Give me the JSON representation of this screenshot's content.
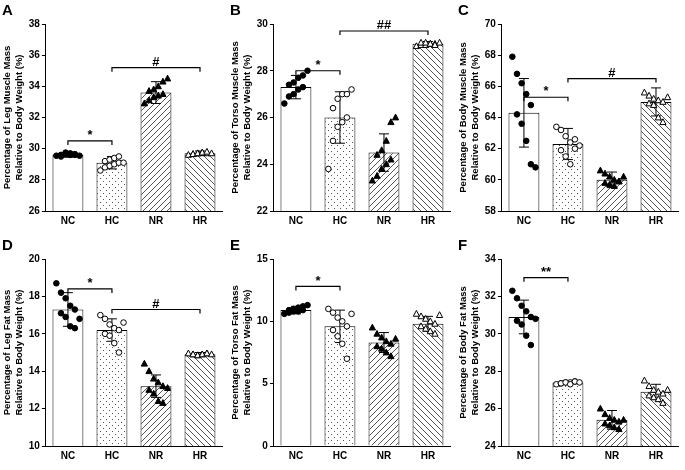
{
  "chart_data": [
    {
      "type": "bar",
      "title": "A",
      "ylabel": [
        "Percentage of Leg Muscle Mass",
        "Relative to Body Weight (%)"
      ],
      "categories": [
        "NC",
        "HC",
        "NR",
        "HR"
      ],
      "values": [
        29.6,
        29.1,
        33.6,
        29.7
      ],
      "errors": [
        0.15,
        0.4,
        0.7,
        0.15
      ],
      "points": [
        [
          29.55,
          29.6,
          29.65,
          29.7,
          29.6,
          29.5,
          29.75,
          29.6,
          29.65,
          29.55
        ],
        [
          28.6,
          28.8,
          28.9,
          29.0,
          29.1,
          29.2,
          29.3,
          29.4,
          29.5,
          29.1
        ],
        [
          32.9,
          33.1,
          33.3,
          33.4,
          33.5,
          33.7,
          33.8,
          34.0,
          34.3,
          34.5
        ],
        [
          29.6,
          29.65,
          29.7,
          29.75,
          29.7,
          29.65,
          29.7,
          29.75,
          29.8,
          29.7
        ]
      ],
      "annotations": [
        {
          "from": "NC",
          "to": "HC",
          "y": 30.5,
          "text": "*"
        },
        {
          "from": "HC",
          "to": "HR",
          "y": 35.2,
          "text": "#"
        }
      ],
      "ylim": [
        26,
        38
      ],
      "yticks": [
        26,
        28,
        30,
        32,
        34,
        36,
        38
      ],
      "grid": false
    },
    {
      "type": "bar",
      "title": "B",
      "ylabel": [
        "Percentage of Torso Muscle Mass",
        "Relative to Body Weight (%)"
      ],
      "categories": [
        "NC",
        "HC",
        "NR",
        "HR"
      ],
      "values": [
        27.3,
        26.0,
        24.5,
        29.15
      ],
      "errors": [
        0.5,
        1.1,
        0.8,
        0.1
      ],
      "points": [
        [
          26.6,
          26.9,
          27.0,
          27.2,
          27.3,
          27.4,
          27.5,
          27.7,
          27.8,
          28.0
        ],
        [
          23.8,
          25.0,
          25.6,
          25.8,
          26.0,
          26.4,
          26.8,
          27.0,
          27.0,
          27.2
        ],
        [
          23.3,
          23.5,
          23.8,
          24.0,
          24.2,
          24.4,
          24.6,
          25.0,
          25.8,
          26.0
        ],
        [
          29.05,
          29.1,
          29.1,
          29.15,
          29.15,
          29.2,
          29.2,
          29.15,
          29.1,
          29.2
        ]
      ],
      "annotations": [
        {
          "from": "NC",
          "to": "HC",
          "y": 28.0,
          "text": "*"
        },
        {
          "from": "HC",
          "to": "HR",
          "y": 29.7,
          "text": "##"
        }
      ],
      "ylim": [
        22,
        30
      ],
      "yticks": [
        22,
        24,
        26,
        28,
        30
      ],
      "grid": false
    },
    {
      "type": "bar",
      "title": "C",
      "ylabel": [
        "Percentage of Body Muscle Mass",
        "Relative to Body Weight (%)"
      ],
      "categories": [
        "NC",
        "HC",
        "NR",
        "HR"
      ],
      "values": [
        64.3,
        62.3,
        60.0,
        65.0
      ],
      "errors": [
        2.2,
        1.0,
        0.5,
        0.9
      ],
      "points": [
        [
          67.9,
          66.8,
          66.2,
          65.5,
          64.8,
          64.2,
          63.6,
          62.5,
          61.0,
          60.8
        ],
        [
          63.4,
          63.2,
          62.8,
          62.4,
          62.0,
          61.9,
          61.5,
          61.0,
          62.6,
          62.2
        ],
        [
          60.6,
          60.4,
          60.2,
          60.0,
          59.9,
          59.8,
          59.7,
          59.6,
          59.9,
          60.2
        ],
        [
          65.6,
          65.4,
          65.2,
          65.1,
          65.0,
          64.9,
          64.8,
          64.0,
          63.7,
          65.3
        ]
      ],
      "annotations": [
        {
          "from": "NC",
          "to": "HC",
          "y": 65.3,
          "text": "*"
        },
        {
          "from": "HC",
          "to": "HR",
          "y": 66.5,
          "text": "#"
        }
      ],
      "ylim": [
        58,
        70
      ],
      "yticks": [
        58,
        60,
        62,
        64,
        66,
        68,
        70
      ],
      "grid": false
    },
    {
      "type": "bar",
      "title": "D",
      "ylabel": [
        "Percentage of Leg Fat Mass",
        "Relative to Body Weight (%)"
      ],
      "categories": [
        "NC",
        "HC",
        "NR",
        "HR"
      ],
      "values": [
        17.3,
        16.2,
        13.2,
        14.9
      ],
      "errors": [
        0.9,
        0.6,
        0.6,
        0.1
      ],
      "points": [
        [
          18.7,
          18.2,
          17.9,
          17.5,
          17.3,
          17.1,
          16.9,
          16.4,
          16.3,
          16.8
        ],
        [
          17.0,
          16.8,
          16.5,
          16.3,
          16.2,
          16.0,
          15.9,
          15.5,
          15.0,
          16.6
        ],
        [
          14.4,
          14.0,
          13.6,
          13.4,
          13.2,
          13.0,
          12.8,
          12.4,
          12.3,
          13.1
        ],
        [
          14.95,
          14.9,
          14.85,
          14.9,
          14.95,
          14.9,
          14.85,
          14.9,
          14.95,
          14.9
        ]
      ],
      "annotations": [
        {
          "from": "NC",
          "to": "HC",
          "y": 18.4,
          "text": "*"
        },
        {
          "from": "HC",
          "to": "HR",
          "y": 17.3,
          "text": "#"
        }
      ],
      "ylim": [
        10,
        20
      ],
      "yticks": [
        10,
        12,
        14,
        16,
        18,
        20
      ],
      "grid": false
    },
    {
      "type": "bar",
      "title": "E",
      "ylabel": [
        "Percentage of Torso Fat Mass",
        "Relative to Body Weight (%)"
      ],
      "categories": [
        "NC",
        "HC",
        "NR",
        "HR"
      ],
      "values": [
        10.9,
        9.6,
        8.3,
        9.8
      ],
      "errors": [
        0.3,
        1.3,
        0.8,
        0.6
      ],
      "points": [
        [
          10.6,
          10.7,
          10.8,
          10.8,
          10.9,
          10.9,
          11.0,
          11.1,
          11.2,
          11.3
        ],
        [
          11.0,
          10.7,
          10.3,
          10.0,
          9.6,
          9.3,
          8.8,
          8.2,
          7.0,
          10.6
        ],
        [
          9.5,
          9.0,
          8.7,
          8.4,
          8.2,
          8.0,
          7.8,
          7.5,
          7.2,
          8.6
        ],
        [
          10.6,
          10.4,
          10.2,
          10.0,
          9.8,
          9.6,
          9.4,
          9.2,
          9.0,
          10.5
        ]
      ],
      "annotations": [
        {
          "from": "NC",
          "to": "HC",
          "y": 12.8,
          "text": "*"
        }
      ],
      "ylim": [
        0,
        15
      ],
      "yticks": [
        0,
        5,
        10,
        15
      ],
      "grid": false
    },
    {
      "type": "bar",
      "title": "F",
      "ylabel": [
        "Percentage of Body Fat Mass",
        "Relative to Body Weight (%)"
      ],
      "categories": [
        "NC",
        "HC",
        "NR",
        "HR"
      ],
      "values": [
        30.9,
        27.4,
        25.4,
        26.9
      ],
      "errors": [
        0.9,
        0.08,
        0.5,
        0.4
      ],
      "points": [
        [
          32.3,
          31.9,
          31.5,
          31.2,
          30.9,
          30.7,
          30.5,
          29.9,
          29.4,
          30.8
        ],
        [
          27.3,
          27.35,
          27.4,
          27.4,
          27.45,
          27.35,
          27.4,
          27.3,
          27.45,
          27.4
        ],
        [
          26.0,
          25.7,
          25.5,
          25.4,
          25.3,
          25.2,
          25.1,
          25.0,
          24.9,
          25.4
        ],
        [
          27.5,
          27.2,
          27.0,
          26.9,
          26.8,
          26.7,
          26.6,
          26.5,
          26.3,
          27.0
        ]
      ],
      "annotations": [
        {
          "from": "NC",
          "to": "HC",
          "y": 33.0,
          "text": "**"
        }
      ],
      "ylim": [
        24,
        34
      ],
      "yticks": [
        24,
        26,
        28,
        30,
        32,
        34
      ],
      "grid": false
    }
  ]
}
